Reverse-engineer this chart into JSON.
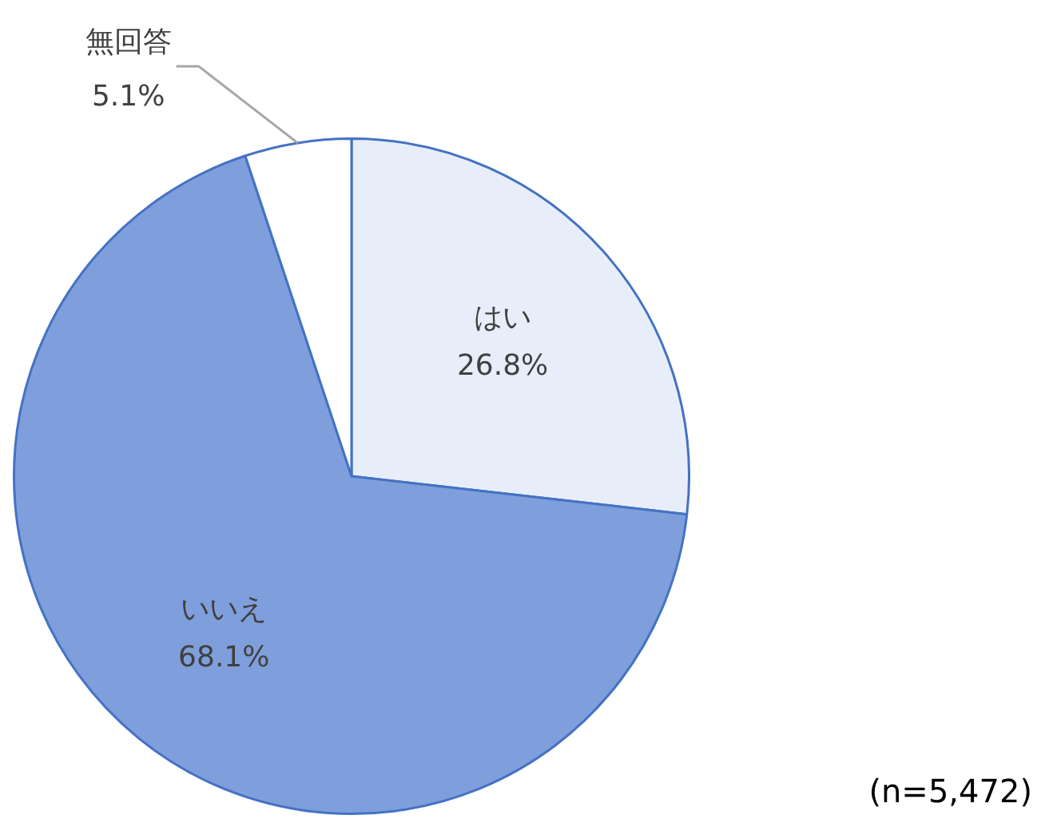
{
  "chart_data": {
    "type": "pie",
    "categories": [
      "はい",
      "いいえ",
      "無回答"
    ],
    "values": [
      26.8,
      68.1,
      5.1
    ],
    "value_labels": [
      "26.8%",
      "68.1%",
      "5.1%"
    ],
    "colors": [
      "#e8eef9",
      "#7f9fdc",
      "#ffffff"
    ],
    "annotations": [
      "(n=5,472)"
    ],
    "legend": false
  }
}
